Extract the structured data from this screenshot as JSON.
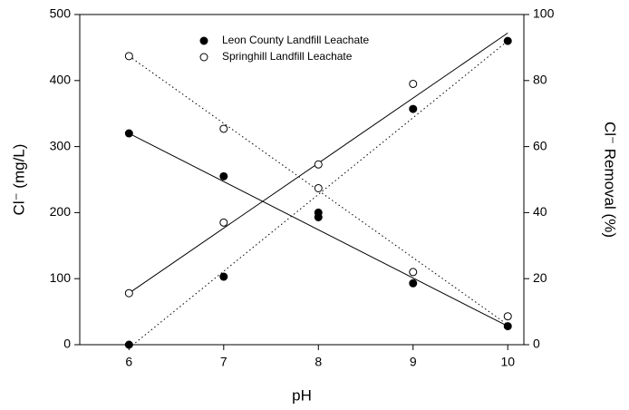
{
  "chart_data": {
    "type": "scatter",
    "x_label": "pH",
    "y_label": "Cl⁻ (mg/L)",
    "y2_label": "Cl⁻ Removal (%)",
    "x": [
      6,
      7,
      8,
      9,
      10
    ],
    "xlim": [
      5.48,
      10.17
    ],
    "xticks": [
      6,
      7,
      8,
      9,
      10
    ],
    "ylim": [
      0,
      500
    ],
    "yticks": [
      0,
      100,
      200,
      300,
      400,
      500
    ],
    "y2lim": [
      0,
      100
    ],
    "y2ticks": [
      0,
      20,
      40,
      60,
      80,
      100
    ],
    "legend": "upper-center",
    "series": [
      {
        "name": "Leon County Landfill Leachate",
        "color": "#000000",
        "filled": true,
        "values": [
          320,
          255,
          193,
          93,
          28
        ],
        "values_y2": [
          0,
          20.6,
          40,
          71.4,
          92
        ],
        "fits": [
          {
            "axis": "y",
            "x": [
              6,
              10
            ],
            "y": [
              320,
              28
            ],
            "dotted": false
          },
          {
            "axis": "y2",
            "x": [
              6,
              10
            ],
            "y": [
              -1,
              92
            ],
            "dotted": true
          }
        ]
      },
      {
        "name": "Springhill Landfill Leachate",
        "color": "#000000",
        "filled": false,
        "values": [
          437,
          327,
          237,
          110,
          43
        ],
        "values_y2": [
          15.6,
          37,
          54.6,
          79,
          null
        ],
        "fits": [
          {
            "axis": "y",
            "x": [
              6,
              10
            ],
            "y": [
              437,
              30
            ],
            "dotted": true
          },
          {
            "axis": "y2",
            "x": [
              6,
              10
            ],
            "y": [
              15.6,
              94.4
            ],
            "dotted": false
          }
        ]
      }
    ]
  }
}
